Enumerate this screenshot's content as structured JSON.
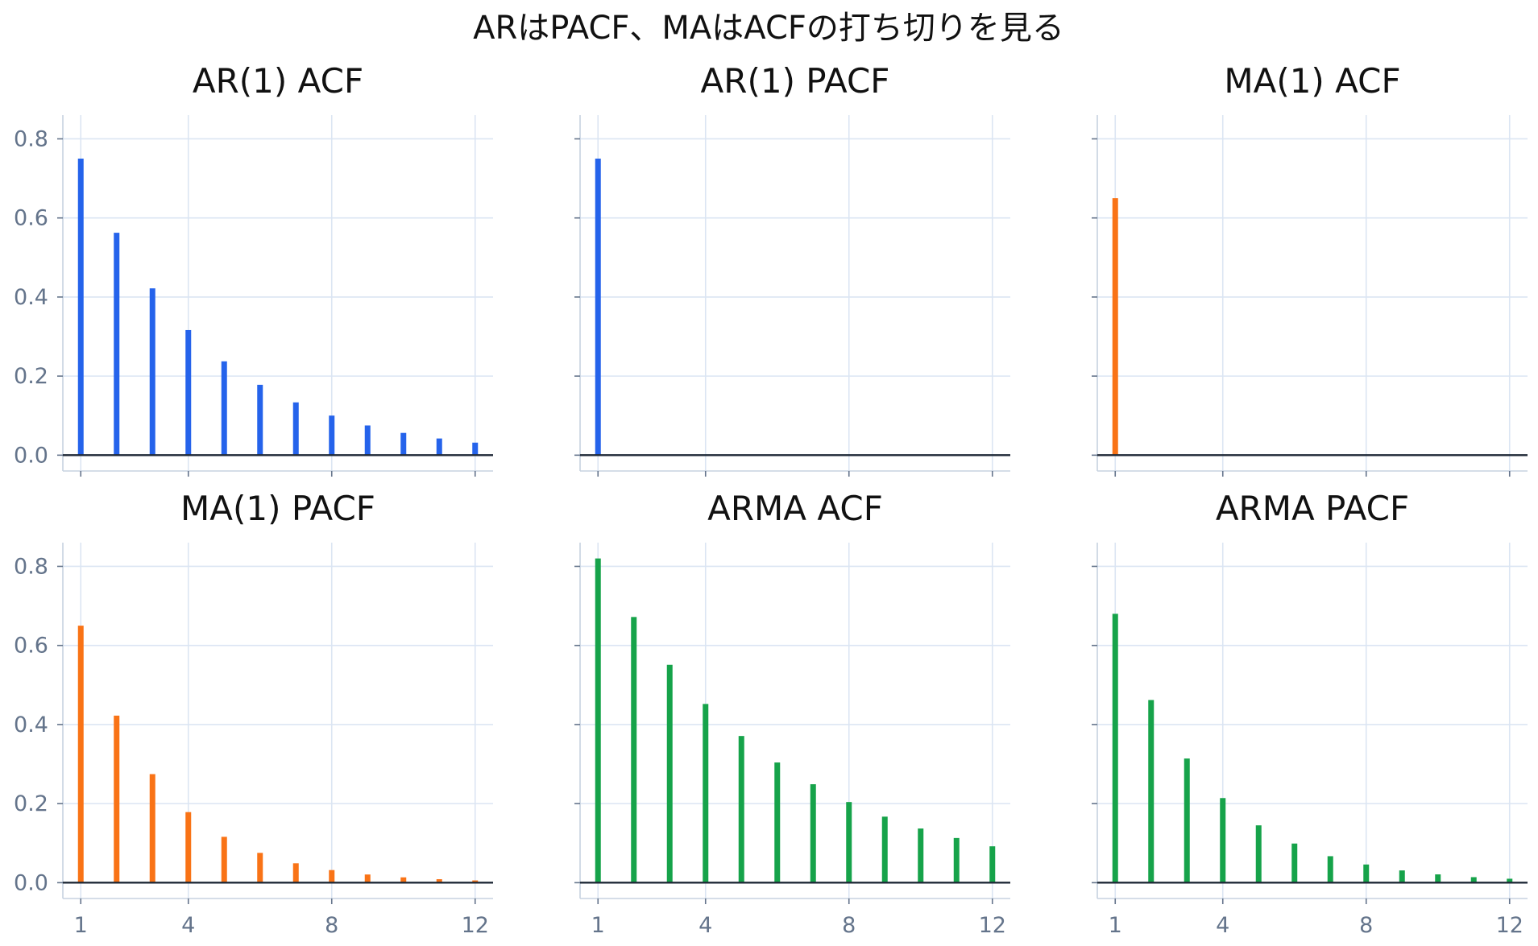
{
  "title": "ARはPACF、MAはACFの打ち切りを見る",
  "colors": {
    "ar": "#2563eb",
    "ma": "#f97316",
    "arma": "#16a34a",
    "grid": "#dbe5f3",
    "axis": "#64748b",
    "zero": "#1f2937"
  },
  "chart_data": [
    {
      "type": "bar",
      "title": "AR(1) ACF",
      "color": "#2563eb",
      "x": [
        1,
        2,
        3,
        4,
        5,
        6,
        7,
        8,
        9,
        10,
        11,
        12
      ],
      "values": [
        0.75,
        0.5625,
        0.4219,
        0.3164,
        0.2373,
        0.178,
        0.1335,
        0.1001,
        0.0751,
        0.0563,
        0.0422,
        0.0317
      ],
      "xticks": [
        1,
        4,
        8,
        12
      ],
      "yticks": [
        0.0,
        0.2,
        0.4,
        0.6,
        0.8
      ],
      "xlim": [
        0.5,
        12.5
      ],
      "ylim": [
        -0.04,
        0.86
      ],
      "grid": true,
      "show_xticklabels": false,
      "show_yticklabels": true
    },
    {
      "type": "bar",
      "title": "AR(1) PACF",
      "color": "#2563eb",
      "x": [
        1,
        2,
        3,
        4,
        5,
        6,
        7,
        8,
        9,
        10,
        11,
        12
      ],
      "values": [
        0.75,
        0,
        0,
        0,
        0,
        0,
        0,
        0,
        0,
        0,
        0,
        0
      ],
      "xticks": [
        1,
        4,
        8,
        12
      ],
      "yticks": [
        0.0,
        0.2,
        0.4,
        0.6,
        0.8
      ],
      "xlim": [
        0.5,
        12.5
      ],
      "ylim": [
        -0.04,
        0.86
      ],
      "grid": true,
      "show_xticklabels": false,
      "show_yticklabels": false
    },
    {
      "type": "bar",
      "title": "MA(1) ACF",
      "color": "#f97316",
      "x": [
        1,
        2,
        3,
        4,
        5,
        6,
        7,
        8,
        9,
        10,
        11,
        12
      ],
      "values": [
        0.65,
        0,
        0,
        0,
        0,
        0,
        0,
        0,
        0,
        0,
        0,
        0
      ],
      "xticks": [
        1,
        4,
        8,
        12
      ],
      "yticks": [
        0.0,
        0.2,
        0.4,
        0.6,
        0.8
      ],
      "xlim": [
        0.5,
        12.5
      ],
      "ylim": [
        -0.04,
        0.86
      ],
      "grid": true,
      "show_xticklabels": false,
      "show_yticklabels": false
    },
    {
      "type": "bar",
      "title": "MA(1) PACF",
      "color": "#f97316",
      "x": [
        1,
        2,
        3,
        4,
        5,
        6,
        7,
        8,
        9,
        10,
        11,
        12
      ],
      "values": [
        0.65,
        0.4225,
        0.2746,
        0.1785,
        0.116,
        0.0754,
        0.049,
        0.0319,
        0.0207,
        0.0135,
        0.0088,
        0.0057
      ],
      "xticks": [
        1,
        4,
        8,
        12
      ],
      "yticks": [
        0.0,
        0.2,
        0.4,
        0.6,
        0.8
      ],
      "xlim": [
        0.5,
        12.5
      ],
      "ylim": [
        -0.04,
        0.86
      ],
      "grid": true,
      "show_xticklabels": true,
      "show_yticklabels": true
    },
    {
      "type": "bar",
      "title": "ARMA ACF",
      "color": "#16a34a",
      "x": [
        1,
        2,
        3,
        4,
        5,
        6,
        7,
        8,
        9,
        10,
        11,
        12
      ],
      "values": [
        0.82,
        0.672,
        0.551,
        0.452,
        0.371,
        0.304,
        0.249,
        0.204,
        0.167,
        0.137,
        0.113,
        0.092
      ],
      "xticks": [
        1,
        4,
        8,
        12
      ],
      "yticks": [
        0.0,
        0.2,
        0.4,
        0.6,
        0.8
      ],
      "xlim": [
        0.5,
        12.5
      ],
      "ylim": [
        -0.04,
        0.86
      ],
      "grid": true,
      "show_xticklabels": true,
      "show_yticklabels": false
    },
    {
      "type": "bar",
      "title": "ARMA PACF",
      "color": "#16a34a",
      "x": [
        1,
        2,
        3,
        4,
        5,
        6,
        7,
        8,
        9,
        10,
        11,
        12
      ],
      "values": [
        0.68,
        0.462,
        0.314,
        0.214,
        0.145,
        0.099,
        0.067,
        0.046,
        0.031,
        0.021,
        0.014,
        0.01
      ],
      "xticks": [
        1,
        4,
        8,
        12
      ],
      "yticks": [
        0.0,
        0.2,
        0.4,
        0.6,
        0.8
      ],
      "xlim": [
        0.5,
        12.5
      ],
      "ylim": [
        -0.04,
        0.86
      ],
      "grid": true,
      "show_xticklabels": true,
      "show_yticklabels": false
    }
  ]
}
